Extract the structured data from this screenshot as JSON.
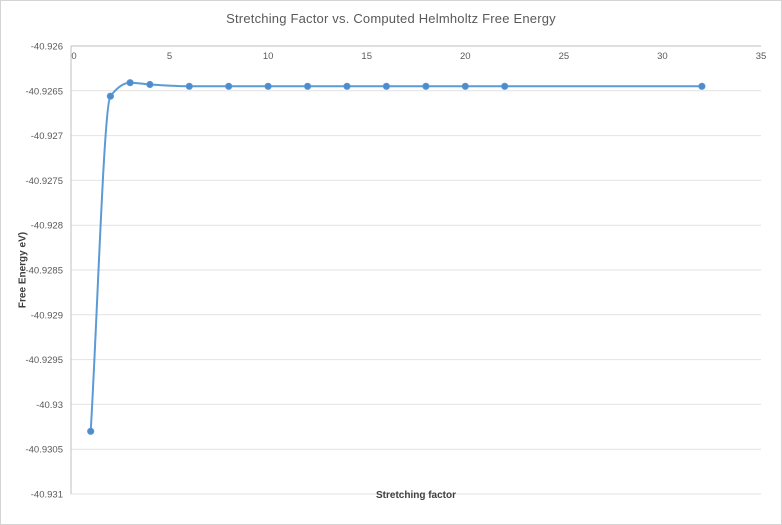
{
  "window": {
    "background": "#ffffff",
    "border_color": "#d4d4d4"
  },
  "chart_data": {
    "type": "line",
    "title": "Stretching Factor vs. Computed Helmholtz Free Energy",
    "xlabel": "Stretching factor",
    "ylabel": "Free Energy eV)",
    "x": [
      1,
      2,
      3,
      4,
      6,
      8,
      10,
      12,
      14,
      16,
      18,
      20,
      22,
      32
    ],
    "y": [
      -40.9303,
      -40.92656,
      -40.92641,
      -40.92643,
      -40.92645,
      -40.92645,
      -40.92645,
      -40.92645,
      -40.92645,
      -40.92645,
      -40.92645,
      -40.92645,
      -40.92645,
      -40.92645
    ],
    "xlim": [
      0,
      35
    ],
    "ylim": [
      -40.931,
      -40.926
    ],
    "x_tick_values": [
      0,
      5,
      10,
      15,
      20,
      25,
      30,
      35
    ],
    "x_tick_labels": [
      "0",
      "5",
      "10",
      "15",
      "20",
      "25",
      "30",
      "35"
    ],
    "y_tick_values": [
      -40.926,
      -40.9265,
      -40.927,
      -40.9275,
      -40.928,
      -40.9285,
      -40.929,
      -40.9295,
      -40.93,
      -40.9305,
      -40.931
    ],
    "y_tick_labels": [
      "-40.926",
      "-40.9265",
      "-40.927",
      "-40.9275",
      "-40.928",
      "-40.9285",
      "-40.929",
      "-40.9295",
      "-40.93",
      "-40.9305",
      "-40.931"
    ],
    "grid": "horizontal",
    "legend": "none",
    "marker": "circle",
    "line_color": "#5B9BD5",
    "marker_color": "#4E8CCB",
    "gridline_color": "#E2E2E2",
    "axis_line_color": "#BFBFBF",
    "title_color": "#595959",
    "tick_label_color": "#595959",
    "axis_title_color": "#3F3F3F"
  }
}
